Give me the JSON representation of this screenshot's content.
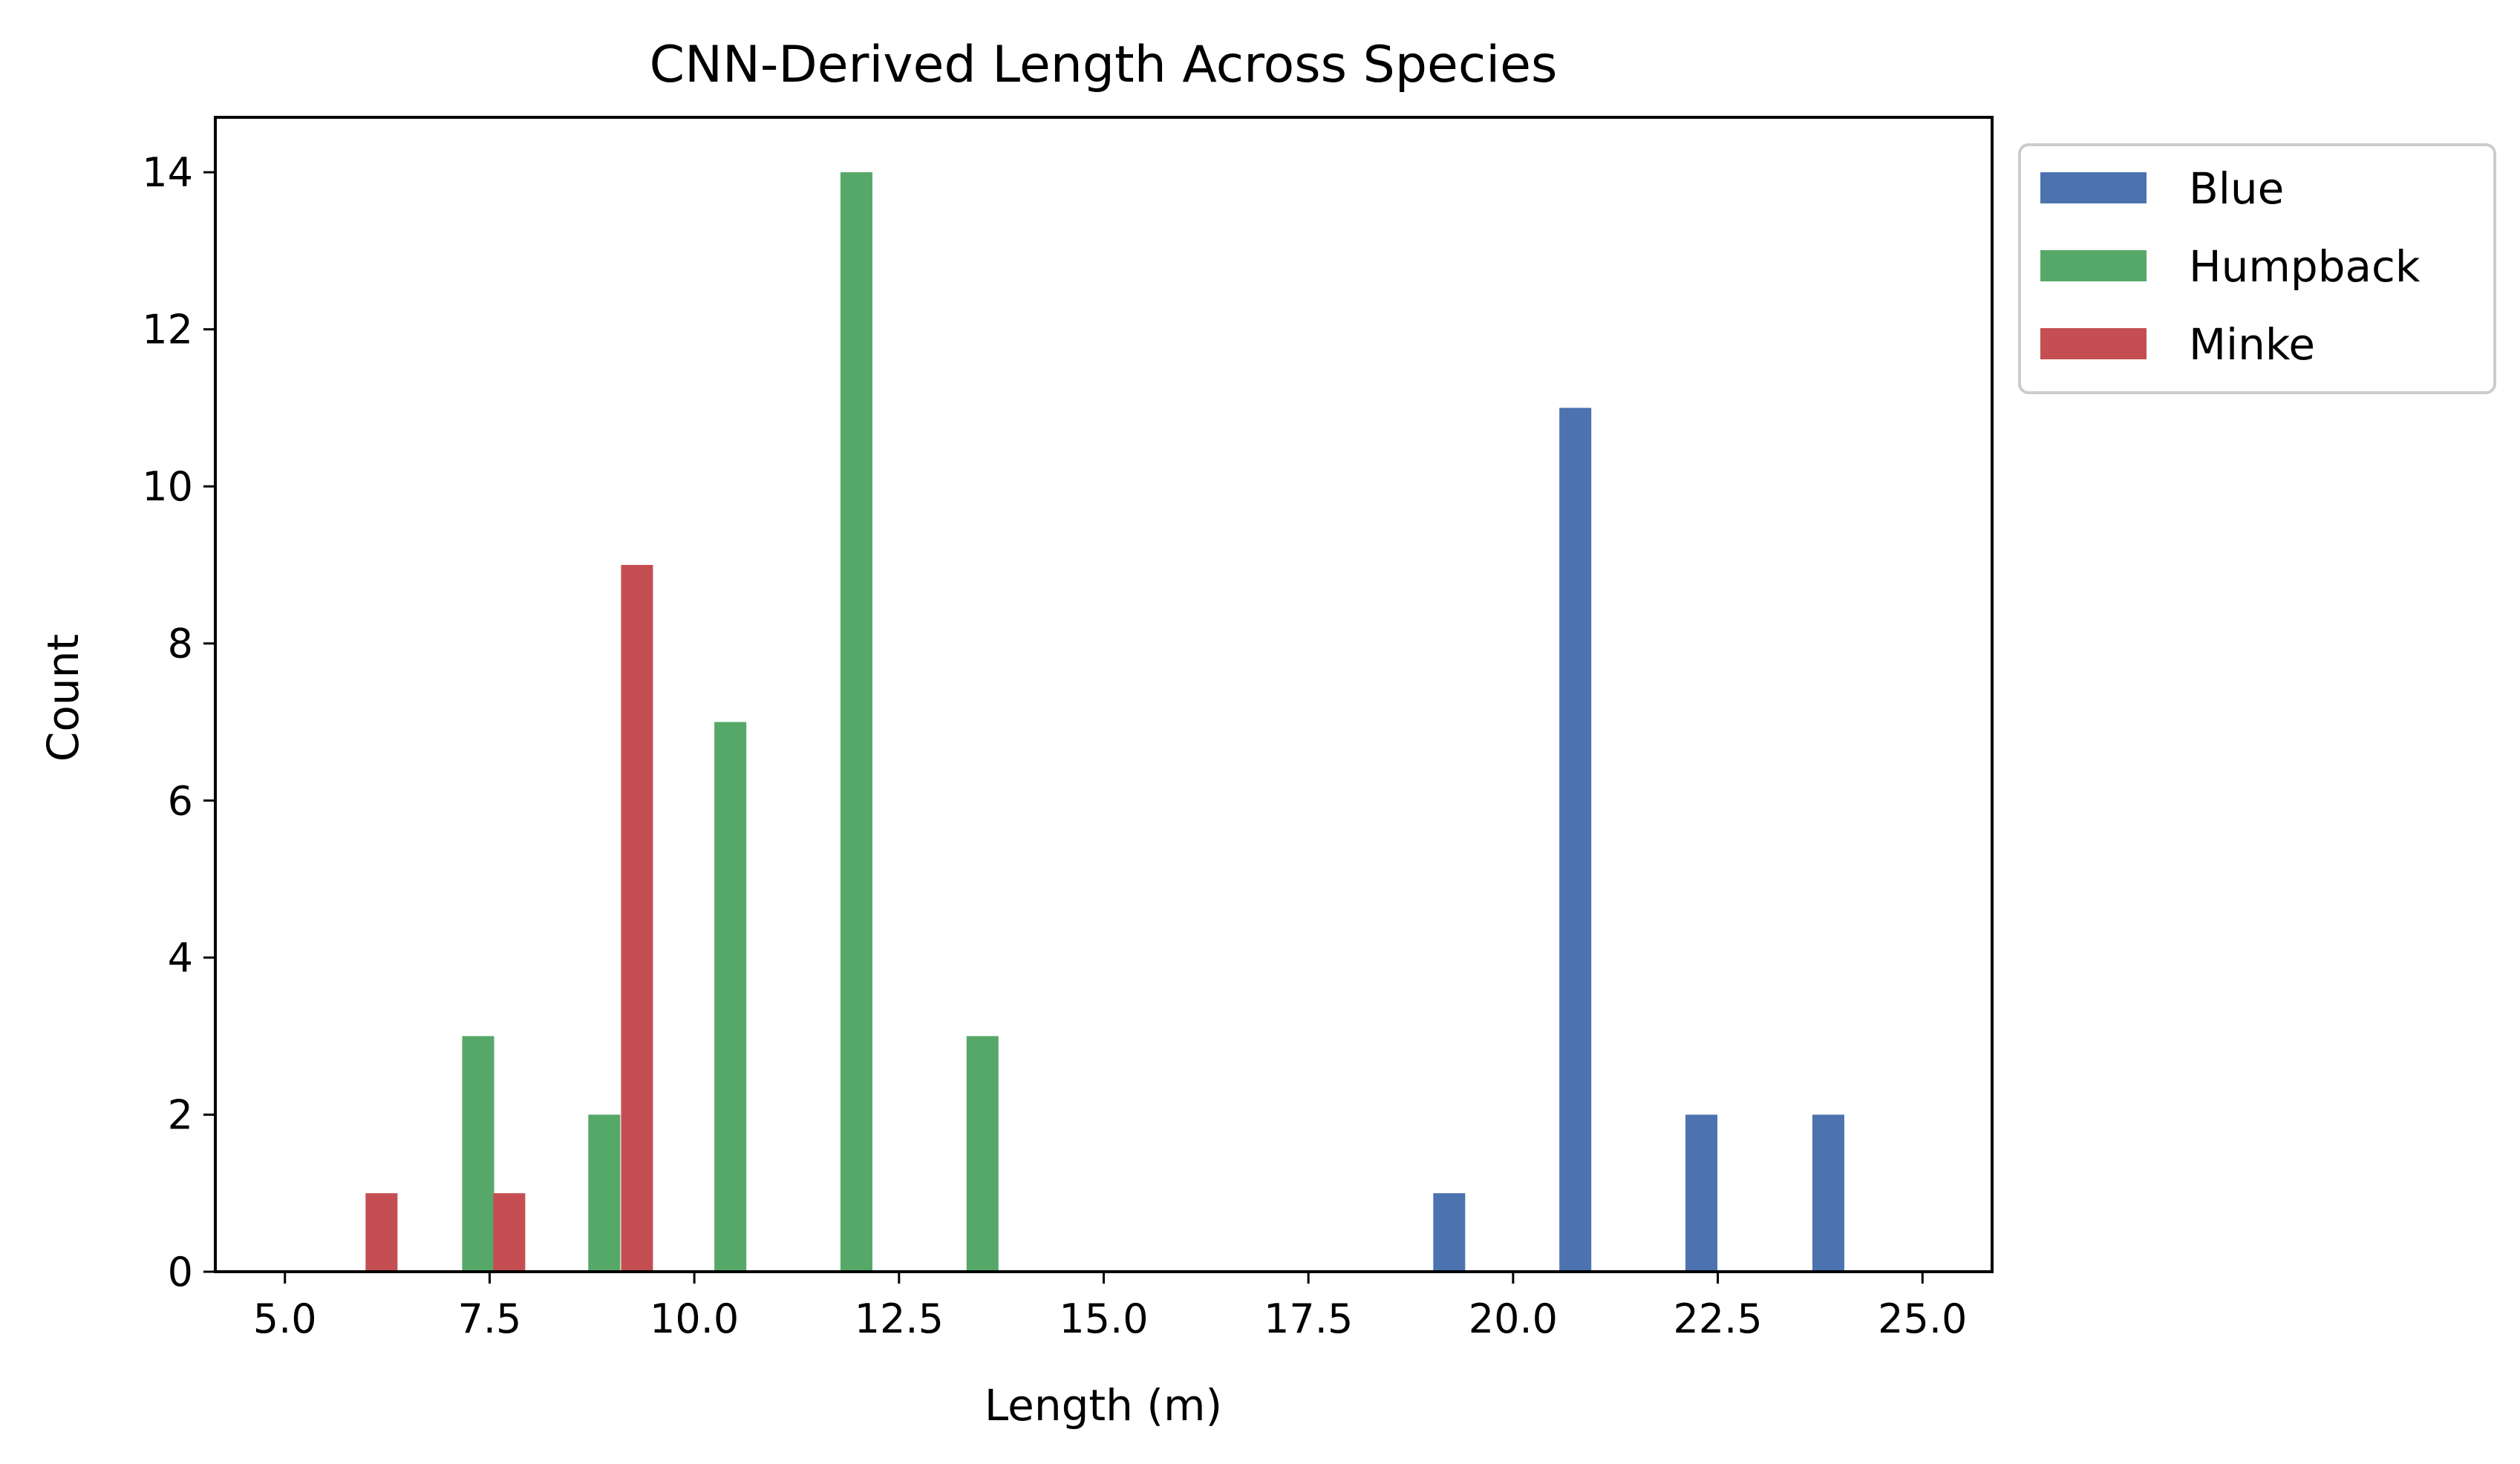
{
  "chart_data": {
    "type": "bar",
    "title": "CNN-Derived Length Across Species",
    "xlabel": "Length (m)",
    "ylabel": "Count",
    "xlim": [
      4.15,
      25.85
    ],
    "ylim": [
      0,
      14.7
    ],
    "xticks": [
      "5.0",
      "7.5",
      "10.0",
      "12.5",
      "15.0",
      "17.5",
      "20.0",
      "22.5",
      "25.0"
    ],
    "xtick_values": [
      5.0,
      7.5,
      10.0,
      12.5,
      15.0,
      17.5,
      20.0,
      22.5,
      25.0
    ],
    "yticks": [
      "0",
      "2",
      "4",
      "6",
      "8",
      "10",
      "12",
      "14"
    ],
    "ytick_values": [
      0,
      2,
      4,
      6,
      8,
      10,
      12,
      14
    ],
    "grid": false,
    "legend_position": "outside-top-right",
    "bar_width": 0.39,
    "series": [
      {
        "name": "Blue",
        "color": "#4c72b0",
        "x": [
          19.22,
          20.76,
          22.3,
          23.85
        ],
        "values": [
          1,
          11,
          2,
          2
        ]
      },
      {
        "name": "Humpback",
        "color": "#55a868",
        "x": [
          7.36,
          8.9,
          10.44,
          11.98,
          13.52
        ],
        "values": [
          3,
          2,
          7,
          14,
          3
        ]
      },
      {
        "name": "Minke",
        "color": "#c44e52",
        "x": [
          6.18,
          7.74,
          9.3
        ],
        "values": [
          1,
          1,
          9
        ]
      }
    ]
  }
}
